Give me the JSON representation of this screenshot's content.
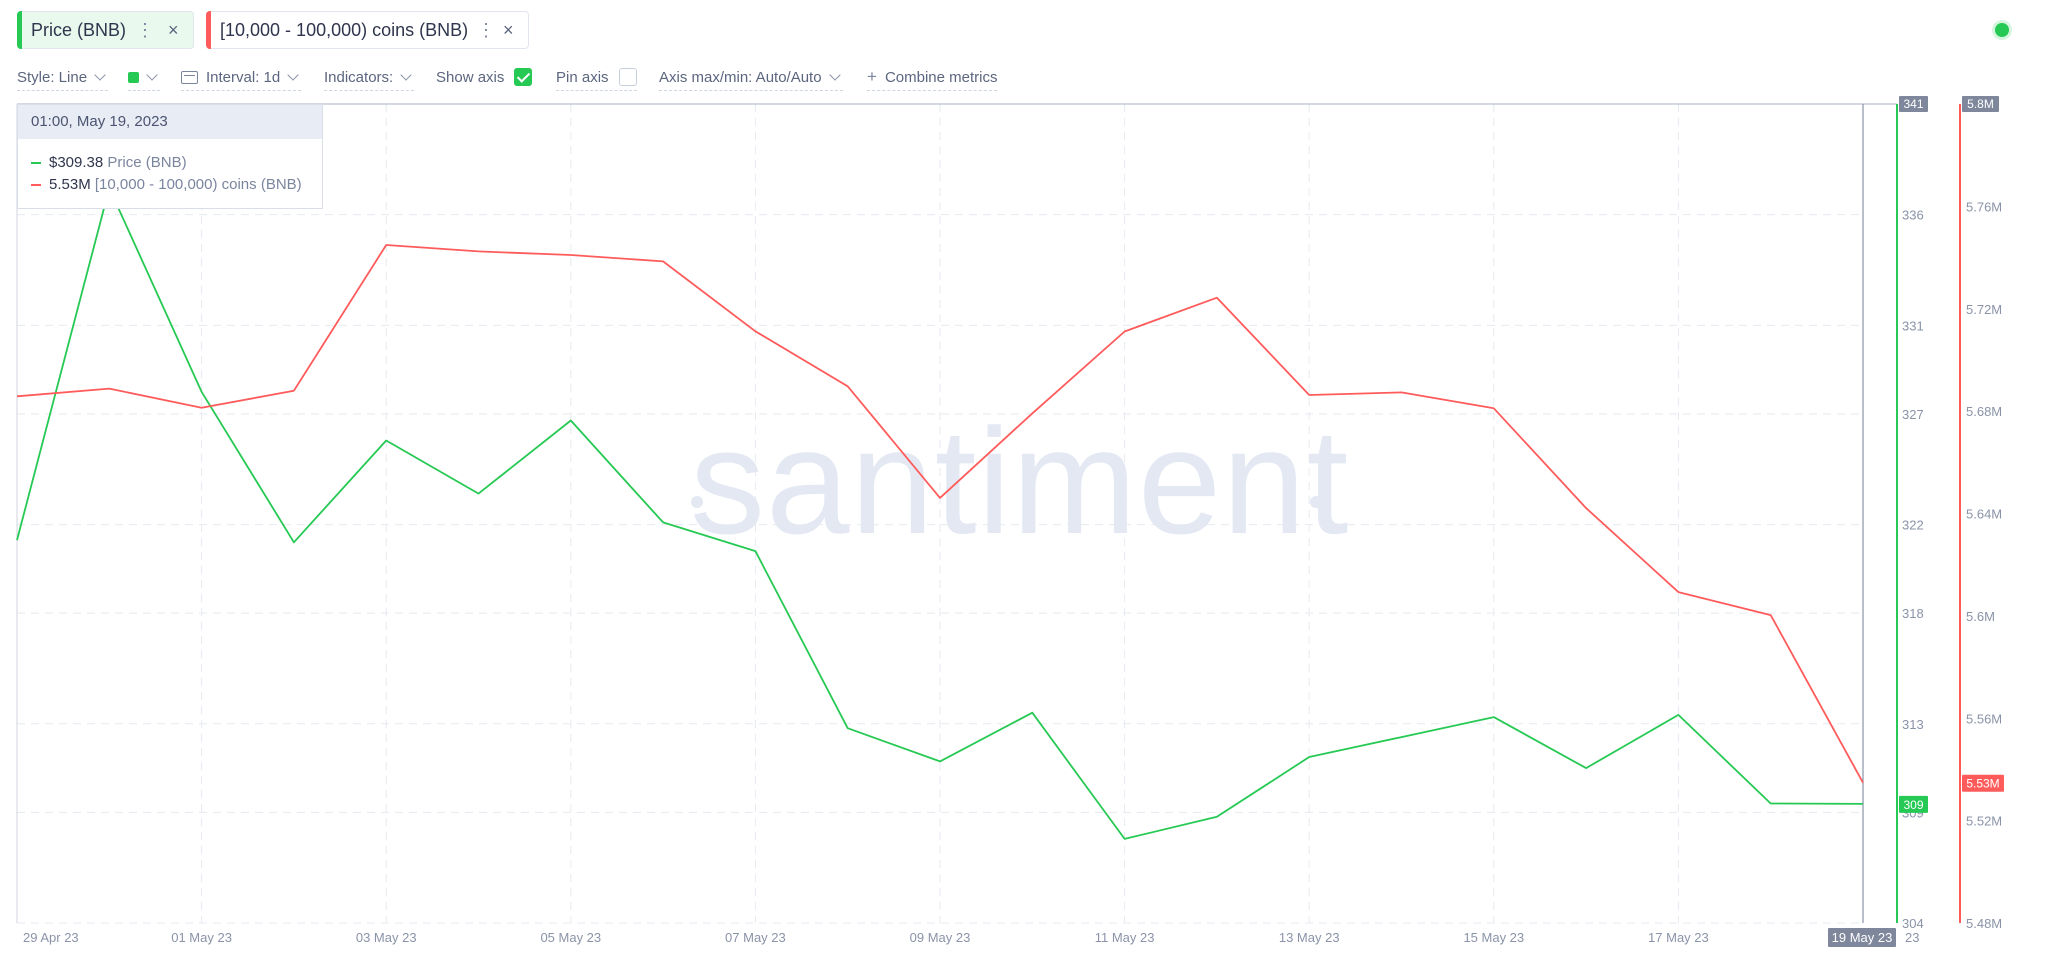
{
  "metrics": [
    {
      "label": "Price (BNB)",
      "color": "#26c953",
      "bg": "#e9f9ee"
    },
    {
      "label": "[10,000 - 100,000) coins (BNB)",
      "color": "#ff5b5b",
      "bg": "#ffffff"
    }
  ],
  "icons": {
    "menu": "⋮",
    "close": "×"
  },
  "toolbar": {
    "style": "Style: Line",
    "interval": "Interval: 1d",
    "indicators": "Indicators:",
    "show_axis": "Show axis",
    "pin_axis": "Pin axis",
    "axis_maxmin": "Axis max/min: Auto/Auto",
    "combine": "Combine metrics",
    "plus": "+"
  },
  "tooltip": {
    "date": "01:00, May 19, 2023",
    "price_value": "$309.38",
    "price_name": "Price (BNB)",
    "holders_value": "5.53M",
    "holders_name": "[10,000 - 100,000) coins (BNB)"
  },
  "watermark": "santiment",
  "chart_data": {
    "type": "line",
    "x_tick_labels": [
      "29 Apr 23",
      "01 May 23",
      "03 May 23",
      "05 May 23",
      "07 May 23",
      "09 May 23",
      "11 May 23",
      "13 May 23",
      "15 May 23",
      "17 May 23"
    ],
    "x_tick_dates": [
      "2023-04-29",
      "2023-05-01",
      "2023-05-03",
      "2023-05-05",
      "2023-05-07",
      "2023-05-09",
      "2023-05-11",
      "2023-05-13",
      "2023-05-15",
      "2023-05-17"
    ],
    "last_date_label": "19 May 23",
    "last_date_suffix": "23",
    "series": [
      {
        "name": "Price (BNB)",
        "color": "#26c953",
        "axis": "left",
        "x": [
          "2023-04-29",
          "2023-04-30",
          "2023-05-01",
          "2023-05-02",
          "2023-05-03",
          "2023-05-04",
          "2023-05-05",
          "2023-05-06",
          "2023-05-07",
          "2023-05-08",
          "2023-05-09",
          "2023-05-10",
          "2023-05-11",
          "2023-05-12",
          "2023-05-13",
          "2023-05-14",
          "2023-05-15",
          "2023-05-16",
          "2023-05-17",
          "2023-05-18",
          "2023-05-19"
        ],
        "values": [
          321.3,
          337.2,
          328.0,
          321.2,
          325.8,
          323.4,
          326.7,
          322.1,
          320.8,
          312.8,
          311.3,
          313.5,
          307.8,
          308.8,
          311.5,
          312.4,
          313.3,
          311.0,
          313.4,
          309.4,
          309.38
        ],
        "last_label": "309"
      },
      {
        "name": "[10,000 - 100,000) coins (BNB)",
        "color": "#ff5b5b",
        "axis": "right",
        "x": [
          "2023-04-29",
          "2023-04-30",
          "2023-05-01",
          "2023-05-02",
          "2023-05-03",
          "2023-05-04",
          "2023-05-05",
          "2023-05-06",
          "2023-05-07",
          "2023-05-08",
          "2023-05-09",
          "2023-05-10",
          "2023-05-11",
          "2023-05-12",
          "2023-05-13",
          "2023-05-14",
          "2023-05-15",
          "2023-05-16",
          "2023-05-17",
          "2023-05-18",
          "2023-05-19"
        ],
        "values": [
          5.6858,
          5.6888,
          5.6813,
          5.688,
          5.7449,
          5.7424,
          5.741,
          5.7385,
          5.7112,
          5.6897,
          5.6461,
          5.6791,
          5.7111,
          5.7243,
          5.6863,
          5.6873,
          5.6811,
          5.6421,
          5.6093,
          5.6003,
          5.5348
        ],
        "last_label": "5.53M"
      }
    ],
    "y_left": {
      "ticks": [
        304,
        309,
        313,
        318,
        322,
        327,
        331,
        336,
        341
      ],
      "range": [
        304,
        341
      ],
      "top_label": "341"
    },
    "y_right": {
      "ticks": [
        "5.48M",
        "5.52M",
        "5.56M",
        "5.6M",
        "5.64M",
        "5.68M",
        "5.72M",
        "5.76M",
        "5.8M"
      ],
      "range": [
        5.48,
        5.8
      ],
      "top_label": "5.8M"
    },
    "grid": true
  }
}
